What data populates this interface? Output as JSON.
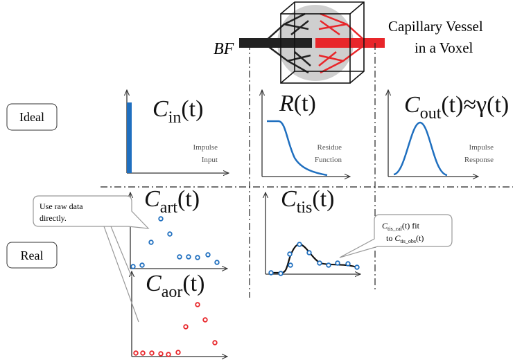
{
  "header": {
    "bf_label": "BF",
    "voxel_caption": [
      "Capillary Vessel",
      "in a Voxel"
    ]
  },
  "rows": [
    {
      "label": "Ideal"
    },
    {
      "label": "Real"
    }
  ],
  "panels": {
    "c_in": {
      "base": "C",
      "sub": "in",
      "arg": "(t)",
      "caption": [
        "Impulse",
        "Input"
      ]
    },
    "r": {
      "base": "R",
      "arg": "(t)",
      "caption": [
        "Residue",
        "Function"
      ]
    },
    "c_out": {
      "base": "C",
      "sub": "out",
      "arg": "(t)",
      "relation": "≈γ(t)",
      "caption": [
        "Impulse",
        "Response"
      ]
    },
    "c_art": {
      "base": "C",
      "sub": "art",
      "arg": "(t)"
    },
    "c_tis": {
      "base": "C",
      "sub": "tis",
      "arg": "(t)"
    },
    "c_aor": {
      "base": "C",
      "sub": "aor",
      "arg": "(t)"
    }
  },
  "callouts": {
    "raw": [
      "Use raw data",
      "directly."
    ],
    "fit": {
      "line1": {
        "base": "C",
        "sub": "tis_cal",
        "rest": "(t) fit"
      },
      "line2": {
        "lead": "to ",
        "base": "C",
        "sub": "tis_obs",
        "rest": "(t)"
      }
    }
  }
}
